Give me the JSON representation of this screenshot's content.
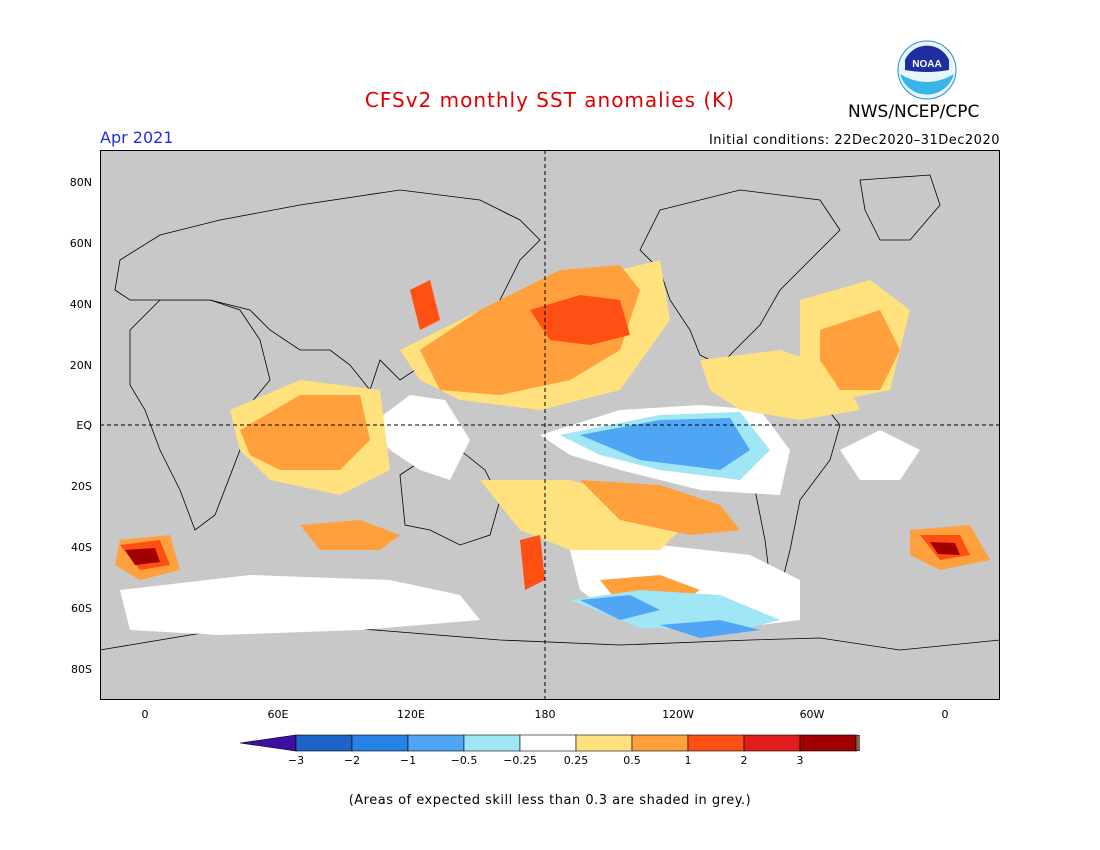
{
  "title": "CFSv2 monthly SST anomalies (K)",
  "agency": "NWS/NCEP/CPC",
  "logo_text": "NOAA",
  "period": "Apr 2021",
  "initial_conditions": "Initial conditions: 22Dec2020–31Dec2020",
  "lat_labels": [
    "80N",
    "60N",
    "40N",
    "20N",
    "EQ",
    "20S",
    "40S",
    "60S",
    "80S"
  ],
  "lon_labels": [
    "0",
    "60E",
    "120E",
    "180",
    "120W",
    "60W",
    "0"
  ],
  "colorbar": {
    "labels": [
      "−3",
      "−2",
      "−1",
      "−0.5",
      "−0.25",
      "0.25",
      "0.5",
      "1",
      "2",
      "3"
    ],
    "colors": [
      "#3c0fa0",
      "#1e64c8",
      "#2882e6",
      "#50a5f5",
      "#a0e6f5",
      "#ffffff",
      "#ffe17d",
      "#ffa03c",
      "#ff5014",
      "#e01e1e",
      "#a00000",
      "#826450"
    ]
  },
  "colors": {
    "land": "#ffffff",
    "low_skill": "#c8c8c8",
    "title": "#e00000",
    "period": "#2030e0"
  },
  "note": "(Areas of expected skill less than 0.3 are shaded in grey.)"
}
